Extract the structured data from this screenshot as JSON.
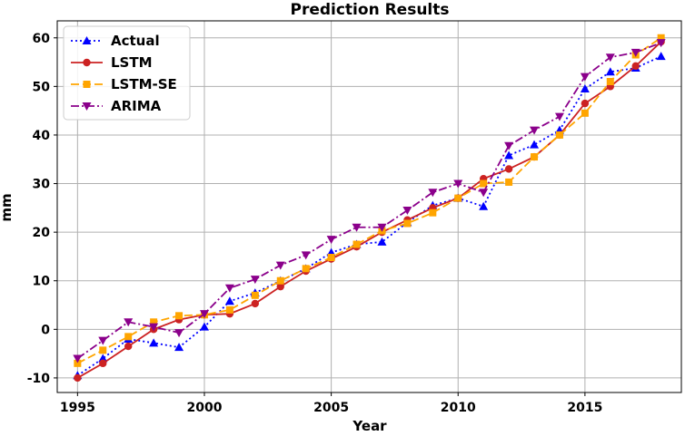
{
  "chart_data": {
    "type": "line",
    "title": "Prediction Results",
    "xlabel": "Year",
    "ylabel": "mm",
    "xlim": [
      1994.2,
      2018.8
    ],
    "ylim": [
      -13,
      63.5
    ],
    "xticks": [
      1995,
      2000,
      2005,
      2010,
      2015
    ],
    "yticks": [
      -10,
      0,
      10,
      20,
      30,
      40,
      50,
      60
    ],
    "grid": true,
    "legend_position": "top-left",
    "x": [
      1995,
      1996,
      1997,
      1998,
      1999,
      2000,
      2001,
      2002,
      2003,
      2004,
      2005,
      2006,
      2007,
      2008,
      2009,
      2010,
      2011,
      2012,
      2013,
      2014,
      2015,
      2016,
      2017,
      2018
    ],
    "series": [
      {
        "name": "Actual",
        "color": "#0000ff",
        "dash": "2,3",
        "marker": "triangle-up",
        "values": [
          -9.5,
          -6,
          -2,
          -2.8,
          -3.7,
          0.5,
          5.8,
          7.5,
          10,
          12.5,
          15.8,
          17.5,
          18,
          22,
          25.5,
          27,
          25.3,
          35.8,
          38,
          41,
          49.5,
          53,
          53.8,
          56.2
        ]
      },
      {
        "name": "LSTM",
        "color": "#cc2222",
        "dash": "",
        "marker": "circle",
        "values": [
          -10,
          -7,
          -3.5,
          0,
          2,
          3,
          3.2,
          5.3,
          8.8,
          12,
          14.5,
          17,
          20,
          22.5,
          25,
          27,
          31,
          33,
          35.5,
          40,
          46.5,
          50,
          54.2,
          59.2
        ]
      },
      {
        "name": "LSTM-SE",
        "color": "#ffa500",
        "dash": "9,4",
        "marker": "square",
        "values": [
          -7,
          -4.3,
          -1.5,
          1.5,
          2.8,
          3,
          4,
          7,
          10,
          12.5,
          14.8,
          17.5,
          20.3,
          21.8,
          24,
          27,
          30,
          30.3,
          35.5,
          40,
          44.5,
          51,
          56.5,
          60
        ]
      },
      {
        "name": "ARIMA",
        "color": "#8b008b",
        "dash": "9,3,2,3",
        "marker": "triangle-down",
        "values": [
          -6,
          -2.3,
          1.5,
          0.5,
          -0.7,
          3.2,
          8.5,
          10.3,
          13.2,
          15.3,
          18.5,
          21,
          21,
          24.5,
          28.2,
          30,
          28.2,
          37.8,
          41,
          43.8,
          52,
          56,
          57,
          59
        ]
      }
    ]
  }
}
